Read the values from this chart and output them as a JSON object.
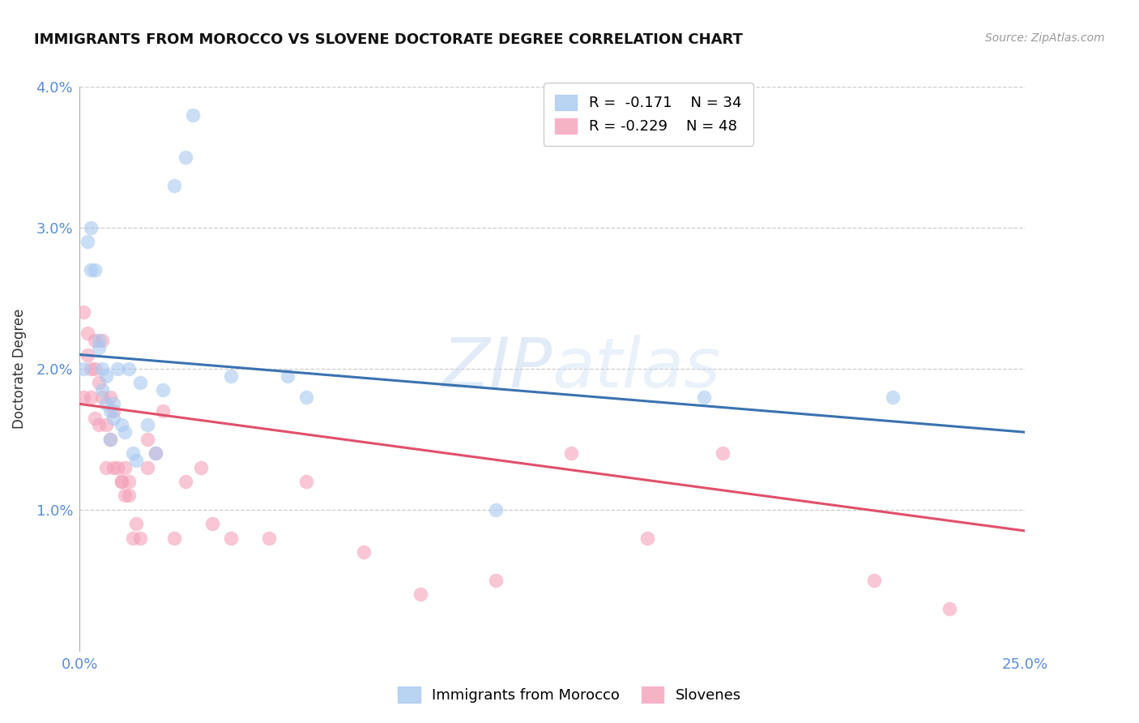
{
  "title": "IMMIGRANTS FROM MOROCCO VS SLOVENE DOCTORATE DEGREE CORRELATION CHART",
  "source": "Source: ZipAtlas.com",
  "ylabel": "Doctorate Degree",
  "xlim": [
    0.0,
    0.25
  ],
  "ylim": [
    0.0,
    0.04
  ],
  "xticks": [
    0.0,
    0.05,
    0.1,
    0.15,
    0.2,
    0.25
  ],
  "xticklabels": [
    "0.0%",
    "",
    "",
    "",
    "",
    "25.0%"
  ],
  "yticks": [
    0.0,
    0.01,
    0.02,
    0.03,
    0.04
  ],
  "yticklabels": [
    "",
    "1.0%",
    "2.0%",
    "3.0%",
    "4.0%"
  ],
  "blue_color": "#A8C8F0",
  "pink_color": "#F4A0B8",
  "blue_line_color": "#3A72B0",
  "pink_line_color": "#E0506A",
  "legend_r_blue": "-0.171",
  "legend_n_blue": "34",
  "legend_r_pink": "-0.229",
  "legend_n_pink": "48",
  "watermark_zip": "ZIP",
  "watermark_atlas": "atlas",
  "blue_scatter_x": [
    0.002,
    0.003,
    0.004,
    0.005,
    0.005,
    0.006,
    0.006,
    0.007,
    0.007,
    0.008,
    0.009,
    0.009,
    0.01,
    0.011,
    0.012,
    0.013,
    0.014,
    0.015,
    0.016,
    0.018,
    0.02,
    0.022,
    0.025,
    0.028,
    0.03,
    0.04,
    0.055,
    0.11,
    0.165,
    0.215,
    0.001,
    0.003,
    0.008,
    0.06
  ],
  "blue_scatter_y": [
    0.029,
    0.027,
    0.027,
    0.0215,
    0.022,
    0.0185,
    0.02,
    0.0175,
    0.0195,
    0.017,
    0.0175,
    0.0165,
    0.02,
    0.016,
    0.0155,
    0.02,
    0.014,
    0.0135,
    0.019,
    0.016,
    0.014,
    0.0185,
    0.033,
    0.035,
    0.038,
    0.0195,
    0.0195,
    0.01,
    0.018,
    0.018,
    0.02,
    0.03,
    0.015,
    0.018
  ],
  "pink_scatter_x": [
    0.001,
    0.002,
    0.002,
    0.003,
    0.003,
    0.004,
    0.004,
    0.005,
    0.005,
    0.006,
    0.006,
    0.007,
    0.007,
    0.008,
    0.008,
    0.009,
    0.009,
    0.01,
    0.011,
    0.011,
    0.012,
    0.012,
    0.013,
    0.013,
    0.014,
    0.015,
    0.016,
    0.018,
    0.018,
    0.02,
    0.022,
    0.025,
    0.028,
    0.032,
    0.035,
    0.04,
    0.05,
    0.06,
    0.075,
    0.09,
    0.11,
    0.13,
    0.15,
    0.17,
    0.21,
    0.23,
    0.001,
    0.004
  ],
  "pink_scatter_y": [
    0.024,
    0.0225,
    0.021,
    0.02,
    0.018,
    0.022,
    0.02,
    0.019,
    0.016,
    0.018,
    0.022,
    0.016,
    0.013,
    0.015,
    0.018,
    0.017,
    0.013,
    0.013,
    0.012,
    0.012,
    0.011,
    0.013,
    0.012,
    0.011,
    0.008,
    0.009,
    0.008,
    0.013,
    0.015,
    0.014,
    0.017,
    0.008,
    0.012,
    0.013,
    0.009,
    0.008,
    0.008,
    0.012,
    0.007,
    0.004,
    0.005,
    0.014,
    0.008,
    0.014,
    0.005,
    0.003,
    0.018,
    0.0165
  ],
  "blue_line_x0": 0.0,
  "blue_line_x1": 0.25,
  "blue_line_y0": 0.021,
  "blue_line_y1": 0.0155,
  "pink_line_x0": 0.0,
  "pink_line_x1": 0.25,
  "pink_line_y0": 0.0175,
  "pink_line_y1": 0.0085
}
